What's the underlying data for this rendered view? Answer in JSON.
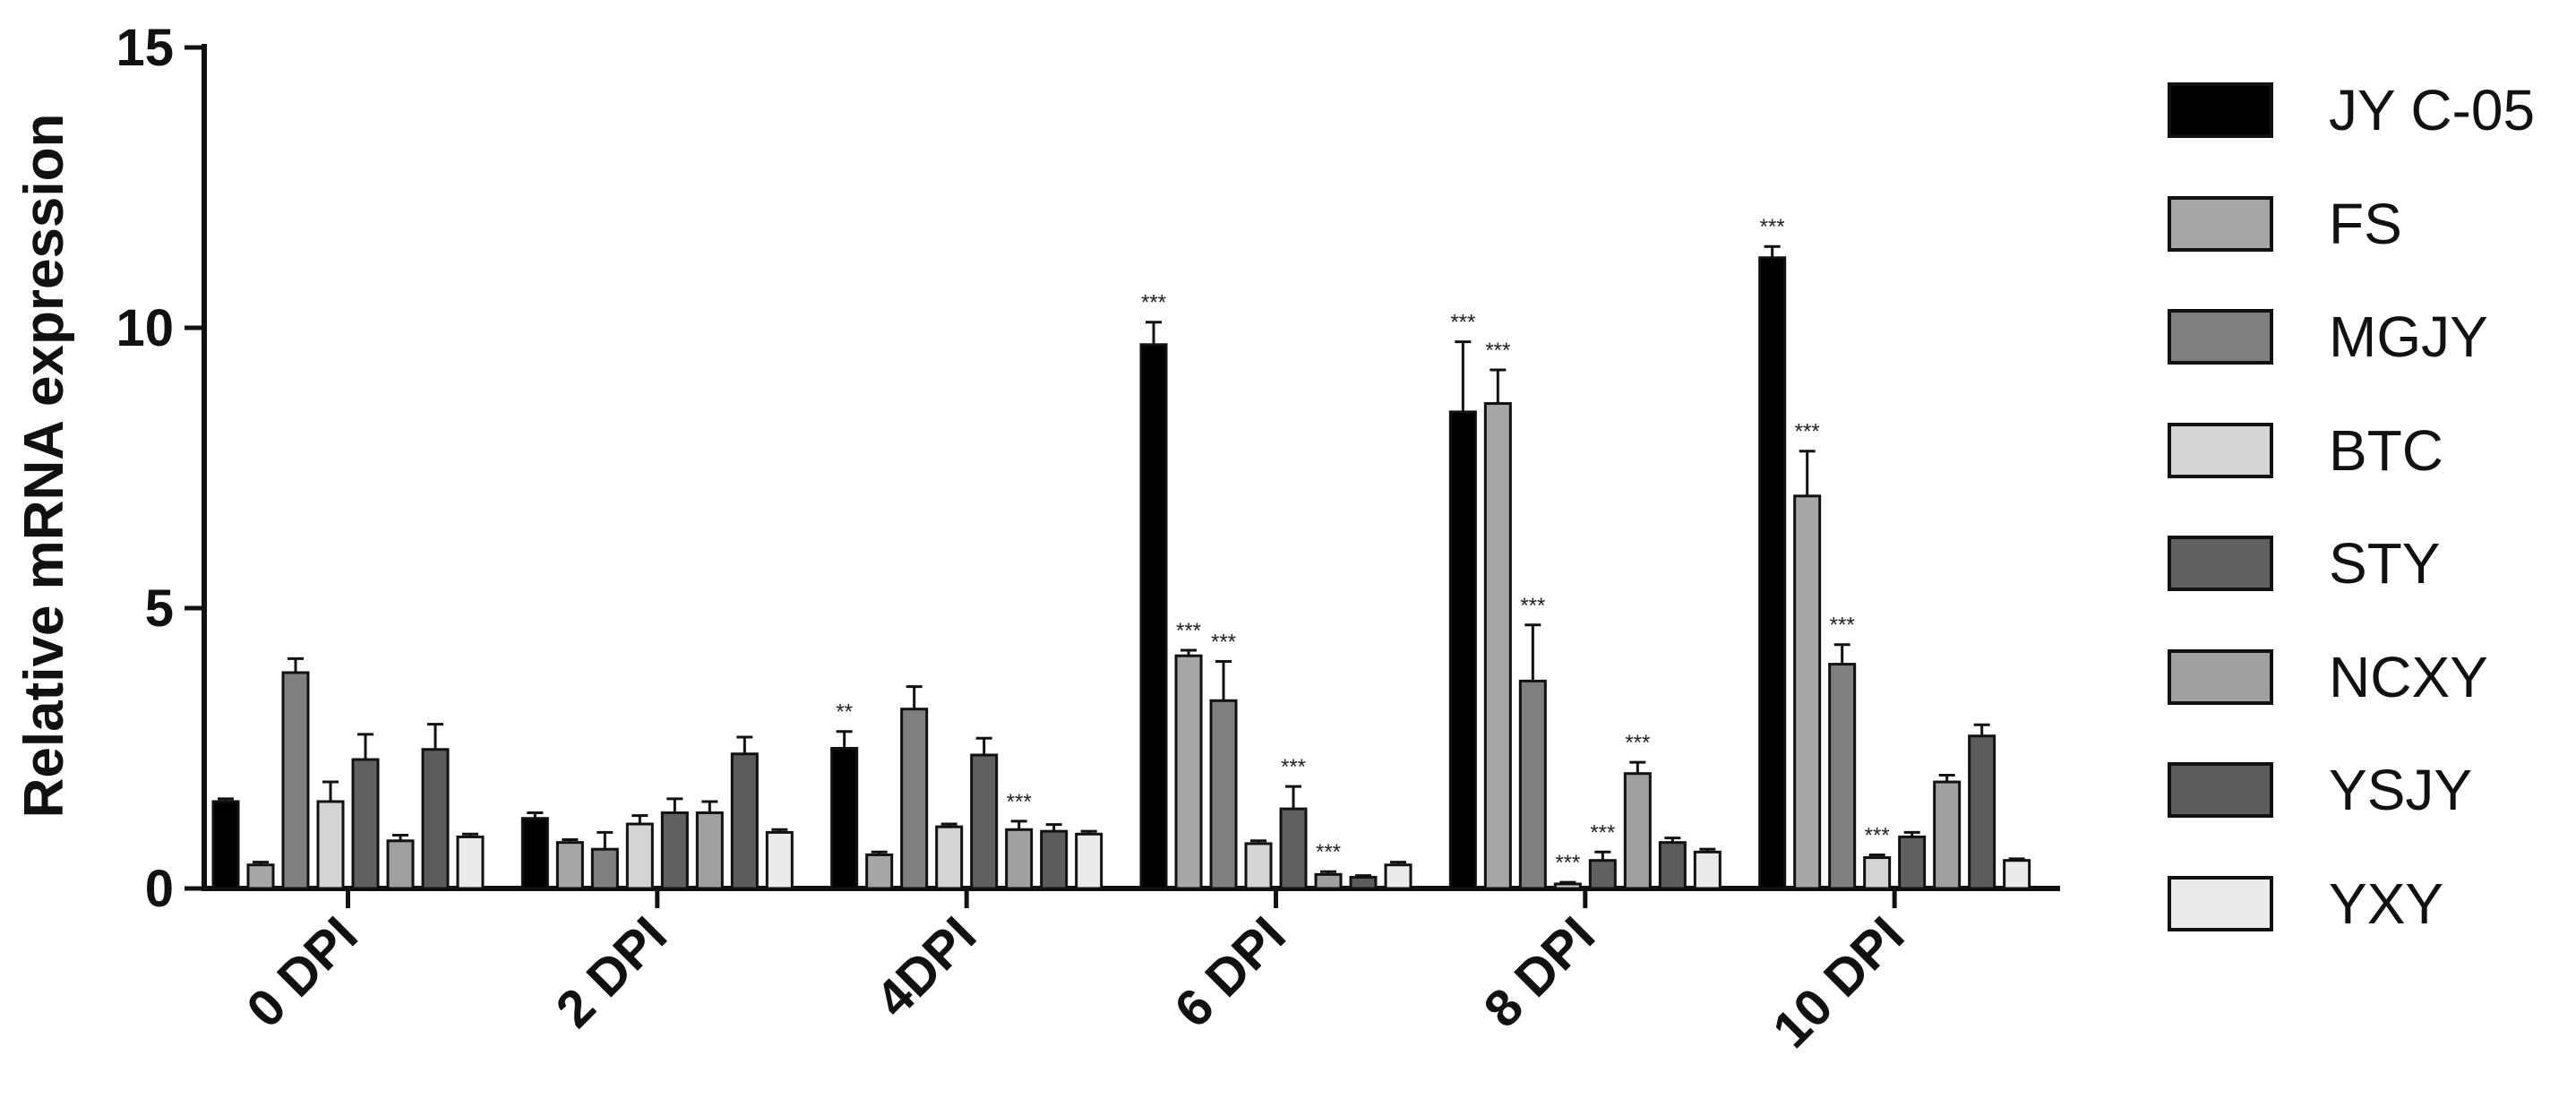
{
  "chart_data": {
    "type": "bar",
    "title": "",
    "xlabel": "",
    "ylabel": "Relative mRNA expression",
    "ylim": [
      0,
      15
    ],
    "yticks": [
      0,
      5,
      10,
      15
    ],
    "grid": false,
    "legend_position": "right",
    "categories": [
      "0 DPI",
      "2 DPI",
      "4DPI",
      "6 DPI",
      "8 DPI",
      "10 DPI"
    ],
    "series": [
      {
        "name": "JY C-05",
        "color": "#000000",
        "values": [
          1.55,
          1.25,
          2.5,
          9.7,
          8.5,
          11.25
        ],
        "errors": [
          0.05,
          0.1,
          0.3,
          0.4,
          1.25,
          0.2
        ],
        "significance": [
          "",
          "",
          "**",
          "***",
          "***",
          "***"
        ]
      },
      {
        "name": "FS",
        "color": "#a6a6a6",
        "values": [
          0.42,
          0.82,
          0.6,
          4.15,
          8.65,
          7.0
        ],
        "errors": [
          0.05,
          0.05,
          0.05,
          0.1,
          0.6,
          0.8
        ],
        "significance": [
          "",
          "",
          "",
          "***",
          "***",
          "***"
        ]
      },
      {
        "name": "MGJY",
        "color": "#7f7f7f",
        "values": [
          3.85,
          0.7,
          3.2,
          3.35,
          3.7,
          4.0
        ],
        "errors": [
          0.25,
          0.3,
          0.4,
          0.7,
          1.0,
          0.35
        ],
        "significance": [
          "",
          "",
          "",
          "***",
          "***",
          "***"
        ]
      },
      {
        "name": "BTC",
        "color": "#d4d4d4",
        "values": [
          1.55,
          1.15,
          1.1,
          0.8,
          0.08,
          0.55
        ],
        "errors": [
          0.35,
          0.15,
          0.05,
          0.05,
          0.03,
          0.05
        ],
        "significance": [
          "",
          "",
          "",
          "",
          "***",
          "***"
        ]
      },
      {
        "name": "STY",
        "color": "#606060",
        "values": [
          2.3,
          1.35,
          2.38,
          1.42,
          0.5,
          0.92
        ],
        "errors": [
          0.45,
          0.25,
          0.3,
          0.4,
          0.15,
          0.08
        ],
        "significance": [
          "",
          "",
          "",
          "***",
          "***",
          ""
        ]
      },
      {
        "name": "NCXY",
        "color": "#a0a0a0",
        "values": [
          0.85,
          1.35,
          1.05,
          0.25,
          2.05,
          1.9
        ],
        "errors": [
          0.1,
          0.2,
          0.15,
          0.05,
          0.2,
          0.12
        ],
        "significance": [
          "",
          "",
          "***",
          "***",
          "***",
          ""
        ]
      },
      {
        "name": "YSJY",
        "color": "#5c5c5c",
        "values": [
          2.48,
          2.4,
          1.02,
          0.2,
          0.82,
          2.72
        ],
        "errors": [
          0.45,
          0.3,
          0.12,
          0.03,
          0.08,
          0.2
        ],
        "significance": [
          "",
          "",
          "",
          "",
          "",
          ""
        ]
      },
      {
        "name": "YXY",
        "color": "#ebebeb",
        "values": [
          0.92,
          1.0,
          0.97,
          0.42,
          0.65,
          0.5
        ],
        "errors": [
          0.05,
          0.05,
          0.05,
          0.05,
          0.05,
          0.03
        ],
        "significance": [
          "",
          "",
          "",
          "",
          "",
          ""
        ]
      }
    ]
  }
}
